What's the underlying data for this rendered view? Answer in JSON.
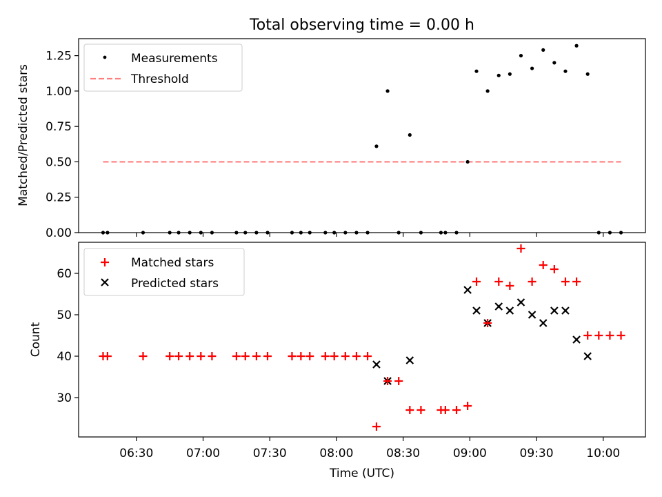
{
  "chart_data": [
    {
      "type": "scatter",
      "title": "Total observing time = 0.00 h",
      "xlabel": "",
      "ylabel": "Matched/Predicted stars",
      "ylim": [
        0,
        1.37
      ],
      "yticks": [
        "0.00",
        "0.25",
        "0.50",
        "0.75",
        "1.00",
        "1.25"
      ],
      "ytick_values": [
        0,
        0.25,
        0.5,
        0.75,
        1.0,
        1.25
      ],
      "legend_position": "top-left",
      "series": [
        {
          "name": "Measurements",
          "marker": "dot",
          "color": "#000000",
          "x": [
            "06:15",
            "06:17",
            "06:33",
            "06:45",
            "06:49",
            "06:54",
            "06:59",
            "07:04",
            "07:15",
            "07:19",
            "07:24",
            "07:29",
            "07:40",
            "07:44",
            "07:48",
            "07:55",
            "07:59",
            "08:04",
            "08:09",
            "08:14",
            "08:18",
            "08:23",
            "08:28",
            "08:33",
            "08:38",
            "08:47",
            "08:49",
            "08:54",
            "08:59",
            "09:03",
            "09:08",
            "09:13",
            "09:18",
            "09:23",
            "09:28",
            "09:33",
            "09:38",
            "09:43",
            "09:48",
            "09:53",
            "09:58",
            "10:03",
            "10:08"
          ],
          "y": [
            0,
            0,
            0,
            0,
            0,
            0,
            0,
            0,
            0,
            0,
            0,
            0,
            0,
            0,
            0,
            0,
            0,
            0,
            0,
            0,
            0.61,
            1.0,
            0,
            0.69,
            0,
            0,
            0,
            0,
            0.5,
            1.14,
            1.0,
            1.11,
            1.12,
            1.25,
            1.16,
            1.29,
            1.2,
            1.14,
            1.32,
            1.12,
            0,
            0,
            0
          ]
        },
        {
          "name": "Threshold",
          "marker": "dashed-line",
          "color": "#ff7f7f",
          "x": [
            "06:15",
            "10:08"
          ],
          "y": [
            0.5,
            0.5
          ]
        }
      ]
    },
    {
      "type": "scatter",
      "xlabel": "Time (UTC)",
      "ylabel": "Count",
      "ylim": [
        20.5,
        67.5
      ],
      "yticks": [
        "30",
        "40",
        "50",
        "60"
      ],
      "ytick_values": [
        30,
        40,
        50,
        60
      ],
      "xlim": [
        "06:04",
        "10:19"
      ],
      "xticks": [
        "06:30",
        "07:00",
        "07:30",
        "08:00",
        "08:30",
        "09:00",
        "09:30",
        "10:00"
      ],
      "legend_position": "top-left",
      "series": [
        {
          "name": "Matched stars",
          "marker": "plus",
          "color": "#ff0000",
          "x": [
            "06:15",
            "06:17",
            "06:33",
            "06:45",
            "06:49",
            "06:54",
            "06:59",
            "07:04",
            "07:15",
            "07:19",
            "07:24",
            "07:29",
            "07:40",
            "07:44",
            "07:48",
            "07:55",
            "07:59",
            "08:04",
            "08:09",
            "08:14",
            "08:18",
            "08:23",
            "08:28",
            "08:33",
            "08:38",
            "08:47",
            "08:49",
            "08:54",
            "08:59",
            "09:03",
            "09:08",
            "09:13",
            "09:18",
            "09:23",
            "09:28",
            "09:33",
            "09:38",
            "09:43",
            "09:48",
            "09:53",
            "09:58",
            "10:03",
            "10:08"
          ],
          "y": [
            40,
            40,
            40,
            40,
            40,
            40,
            40,
            40,
            40,
            40,
            40,
            40,
            40,
            40,
            40,
            40,
            40,
            40,
            40,
            40,
            23,
            34,
            34,
            27,
            27,
            27,
            27,
            27,
            28,
            58,
            48,
            58,
            57,
            66,
            58,
            62,
            61,
            58,
            58,
            45,
            45,
            45,
            45
          ]
        },
        {
          "name": "Predicted stars",
          "marker": "x",
          "color": "#000000",
          "x": [
            "08:18",
            "08:23",
            "08:33",
            "08:59",
            "09:03",
            "09:08",
            "09:13",
            "09:18",
            "09:23",
            "09:28",
            "09:33",
            "09:38",
            "09:43",
            "09:48",
            "09:53"
          ],
          "y": [
            38,
            34,
            39,
            56,
            51,
            48,
            52,
            51,
            53,
            50,
            48,
            51,
            51,
            44,
            40
          ]
        }
      ]
    }
  ]
}
